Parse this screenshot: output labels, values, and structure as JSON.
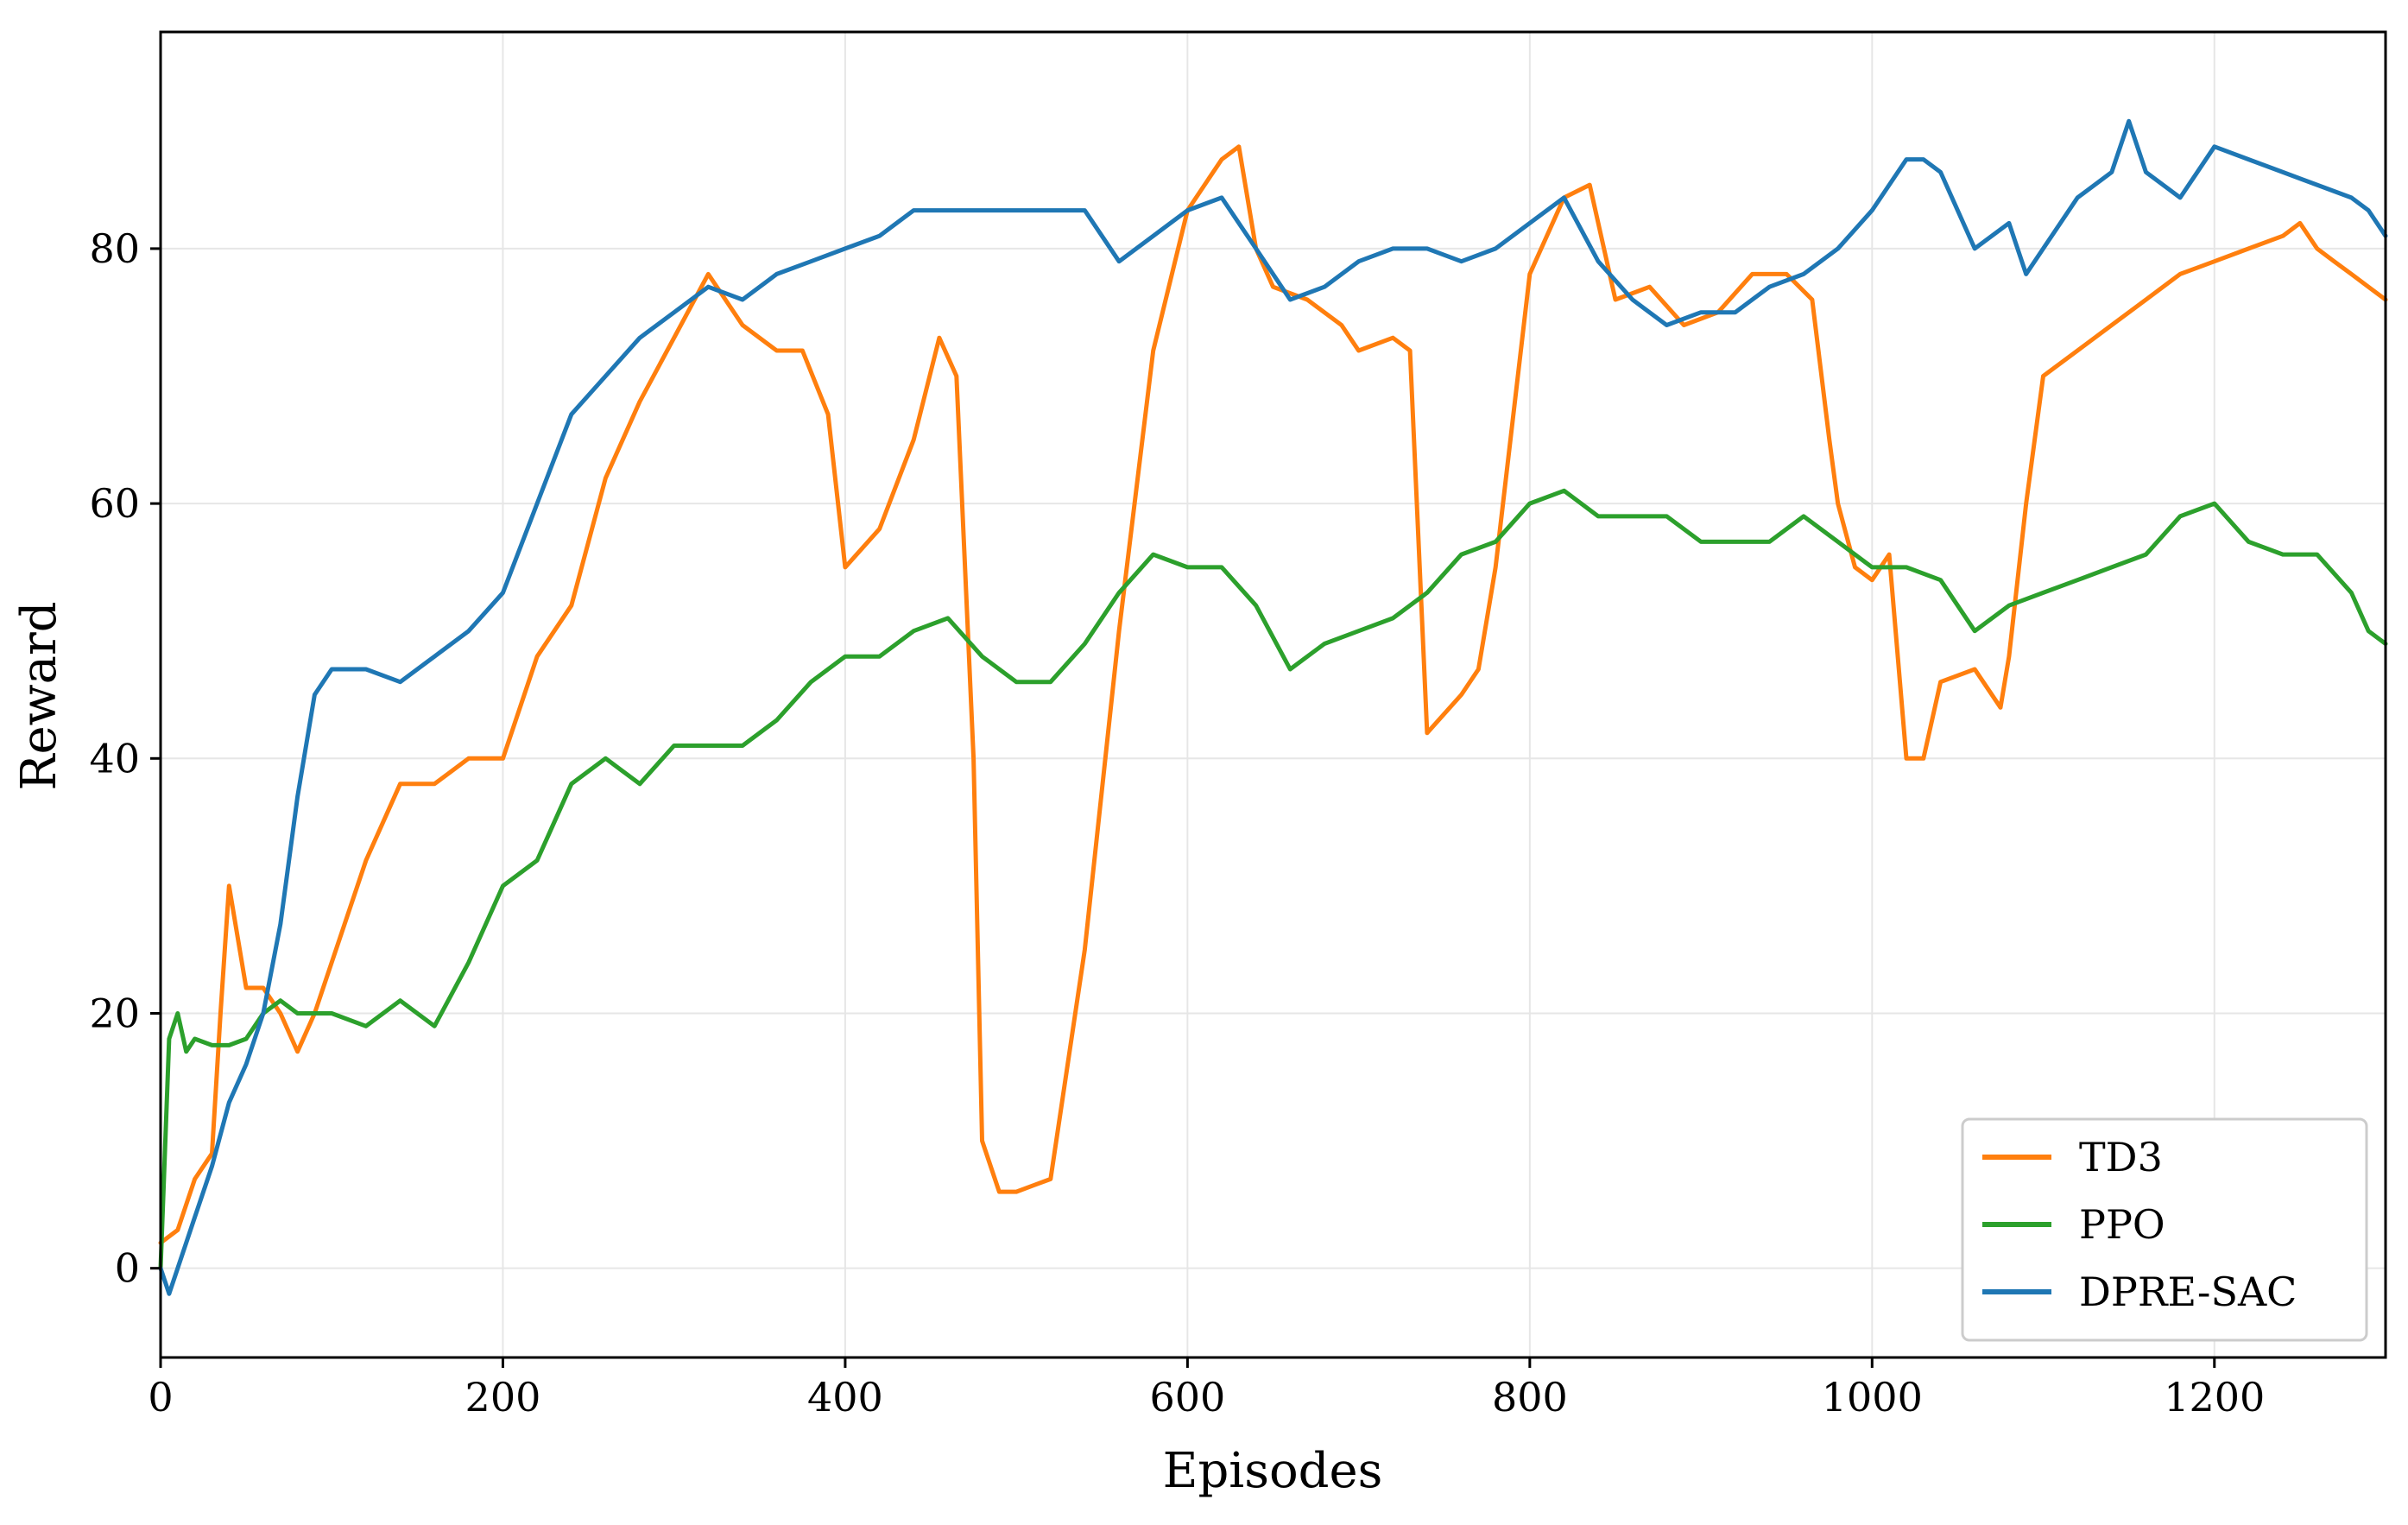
{
  "chart_data": {
    "type": "line",
    "title": "",
    "xlabel": "Episodes",
    "ylabel": "Reward",
    "xlim": [
      0,
      1300
    ],
    "ylim": [
      -7,
      97
    ],
    "xticks": [
      0,
      200,
      400,
      600,
      800,
      1000,
      1200
    ],
    "xtick_labels": [
      "0",
      "200",
      "400",
      "600",
      "800",
      "1000",
      "1200"
    ],
    "yticks": [
      0,
      20,
      40,
      60,
      80
    ],
    "ytick_labels": [
      "0",
      "20",
      "40",
      "60",
      "80"
    ],
    "grid": true,
    "legend_position": "bottom-right",
    "series": [
      {
        "name": "TD3",
        "color": "#ff7f0e",
        "x": [
          0,
          10,
          20,
          30,
          35,
          40,
          50,
          60,
          70,
          80,
          90,
          100,
          120,
          140,
          160,
          180,
          200,
          220,
          240,
          260,
          280,
          300,
          320,
          340,
          360,
          375,
          390,
          400,
          420,
          440,
          455,
          465,
          475,
          480,
          490,
          500,
          510,
          520,
          540,
          560,
          580,
          600,
          620,
          630,
          640,
          650,
          670,
          690,
          700,
          720,
          730,
          740,
          760,
          770,
          780,
          800,
          820,
          835,
          850,
          870,
          890,
          910,
          930,
          950,
          965,
          975,
          980,
          990,
          1000,
          1010,
          1020,
          1030,
          1040,
          1060,
          1075,
          1080,
          1090,
          1100,
          1120,
          1140,
          1160,
          1180,
          1200,
          1220,
          1240,
          1250,
          1260,
          1270,
          1280,
          1290,
          1300
        ],
        "y": [
          2,
          3,
          7,
          9,
          20,
          30,
          22,
          22,
          20,
          17,
          20,
          24,
          32,
          38,
          38,
          40,
          40,
          48,
          52,
          62,
          68,
          73,
          78,
          74,
          72,
          72,
          67,
          55,
          58,
          65,
          73,
          70,
          40,
          10,
          6,
          6,
          6.5,
          7,
          25,
          50,
          72,
          83,
          87,
          88,
          80,
          77,
          76,
          74,
          72,
          73,
          72,
          42,
          45,
          47,
          55,
          78,
          84,
          85,
          76,
          77,
          74,
          75,
          78,
          78,
          76,
          65,
          60,
          55,
          54,
          56,
          40,
          40,
          46,
          47,
          44,
          48,
          60,
          70,
          72,
          74,
          76,
          78,
          79,
          80,
          81,
          82,
          80,
          79,
          78,
          77,
          76
        ]
      },
      {
        "name": "PPO",
        "color": "#2ca02c",
        "x": [
          0,
          5,
          10,
          15,
          20,
          30,
          40,
          50,
          60,
          70,
          80,
          90,
          100,
          120,
          140,
          160,
          180,
          200,
          220,
          240,
          260,
          280,
          300,
          320,
          340,
          360,
          380,
          400,
          420,
          440,
          460,
          480,
          500,
          520,
          540,
          560,
          580,
          600,
          620,
          640,
          660,
          680,
          700,
          720,
          740,
          760,
          780,
          800,
          820,
          840,
          860,
          880,
          900,
          920,
          940,
          960,
          980,
          1000,
          1020,
          1040,
          1060,
          1080,
          1100,
          1120,
          1140,
          1160,
          1180,
          1200,
          1220,
          1240,
          1260,
          1280,
          1290,
          1300
        ],
        "y": [
          0,
          18,
          20,
          17,
          18,
          17.5,
          17.5,
          18,
          20,
          21,
          20,
          20,
          20,
          19,
          21,
          19,
          24,
          30,
          32,
          38,
          40,
          38,
          41,
          41,
          41,
          43,
          46,
          48,
          48,
          50,
          51,
          48,
          46,
          46,
          49,
          53,
          56,
          55,
          55,
          52,
          47,
          49,
          50,
          51,
          53,
          56,
          57,
          60,
          61,
          59,
          59,
          59,
          57,
          57,
          57,
          59,
          57,
          55,
          55,
          54,
          50,
          52,
          53,
          54,
          55,
          56,
          59,
          60,
          57,
          56,
          56,
          53,
          50,
          49
        ]
      },
      {
        "name": "DPRE-SAC",
        "color": "#1f77b4",
        "x": [
          0,
          5,
          10,
          20,
          30,
          40,
          50,
          60,
          70,
          80,
          90,
          100,
          120,
          140,
          160,
          180,
          200,
          220,
          240,
          260,
          280,
          300,
          320,
          340,
          360,
          380,
          400,
          420,
          440,
          460,
          480,
          500,
          520,
          540,
          560,
          580,
          600,
          620,
          640,
          660,
          680,
          700,
          720,
          740,
          760,
          780,
          800,
          820,
          840,
          860,
          880,
          900,
          920,
          940,
          960,
          980,
          1000,
          1020,
          1030,
          1040,
          1060,
          1080,
          1090,
          1100,
          1120,
          1140,
          1150,
          1160,
          1180,
          1200,
          1220,
          1240,
          1260,
          1280,
          1290,
          1300
        ],
        "y": [
          0,
          -2,
          0,
          4,
          8,
          13,
          16,
          20,
          27,
          37,
          45,
          47,
          47,
          46,
          48,
          50,
          53,
          60,
          67,
          70,
          73,
          75,
          77,
          76,
          78,
          79,
          80,
          81,
          83,
          83,
          83,
          83,
          83,
          83,
          79,
          81,
          83,
          84,
          80,
          76,
          77,
          79,
          80,
          80,
          79,
          80,
          82,
          84,
          79,
          76,
          74,
          75,
          75,
          77,
          78,
          80,
          83,
          87,
          87,
          86,
          80,
          82,
          78,
          80,
          84,
          86,
          90,
          86,
          84,
          88,
          87,
          86,
          85,
          84,
          83,
          81
        ]
      }
    ]
  }
}
